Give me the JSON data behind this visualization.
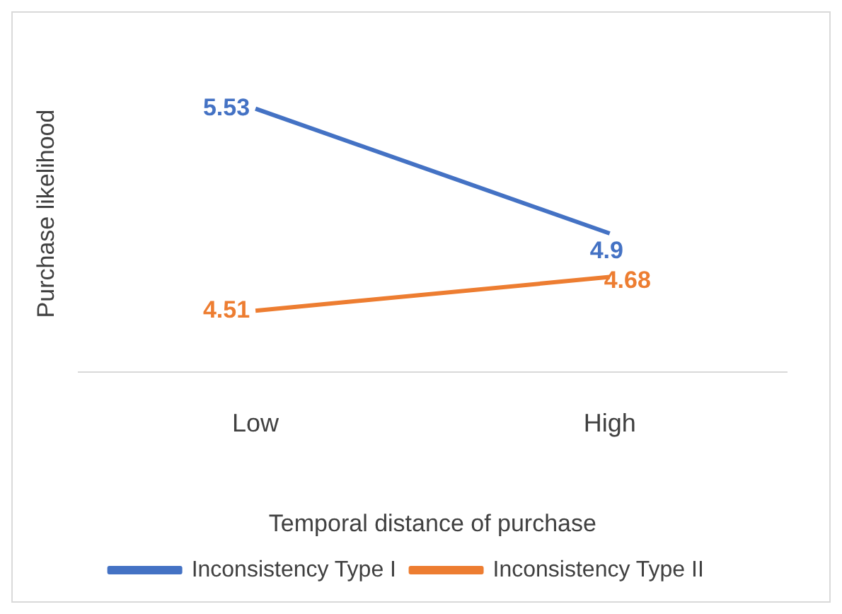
{
  "chart_data": {
    "type": "line",
    "xlabel": "Temporal distance of purchase",
    "ylabel": "Purchase likelihood",
    "categories": [
      "Low",
      "High"
    ],
    "series": [
      {
        "name": "Inconsistency Type I",
        "color": "#4472c4",
        "values": [
          5.53,
          4.9
        ]
      },
      {
        "name": "Inconsistency Type II",
        "color": "#ed7d31",
        "values": [
          4.51,
          4.68
        ]
      }
    ],
    "tick_labels": "x",
    "grid": false,
    "legend": "bottom",
    "marker": "none",
    "line_style": "solid",
    "data_labels": true
  }
}
